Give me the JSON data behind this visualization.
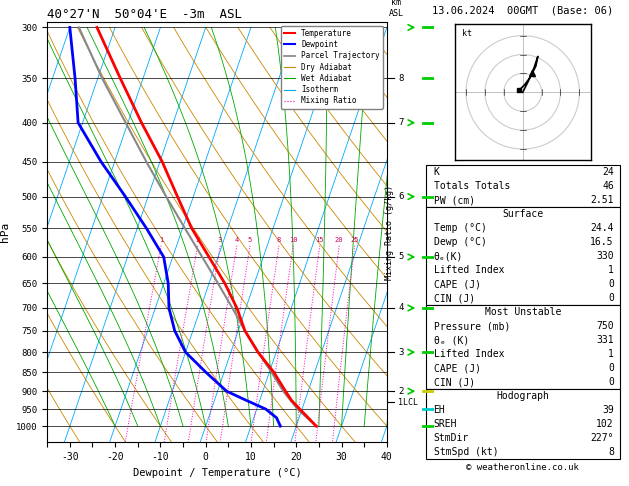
{
  "title_left": "40°27'N  50°04'E  -3m  ASL",
  "title_right": "13.06.2024  00GMT  (Base: 06)",
  "xlabel": "Dewpoint / Temperature (°C)",
  "ylabel_left": "hPa",
  "ylabel_right": "km\nASL",
  "pressure_levels": [
    300,
    350,
    400,
    450,
    500,
    550,
    600,
    650,
    700,
    750,
    800,
    850,
    900,
    950,
    1000
  ],
  "skew_factor": 30,
  "temp_color": "#ff0000",
  "dewp_color": "#0000ff",
  "parcel_color": "#888888",
  "isotherm_color": "#00aaff",
  "dry_adiabat_color": "#cc8800",
  "wet_adiabat_color": "#00aa00",
  "mixing_ratio_color": "#ff00bb",
  "grid_color": "#000000",
  "legend_items": [
    "Temperature",
    "Dewpoint",
    "Parcel Trajectory",
    "Dry Adiabat",
    "Wet Adiabat",
    "Isotherm",
    "Mixing Ratio"
  ],
  "mixing_ratios": [
    1,
    2,
    3,
    4,
    5,
    8,
    10,
    15,
    20,
    25
  ],
  "mixing_ratio_labels": [
    "1",
    "2",
    "3",
    "4",
    "5",
    "8",
    "10",
    "15",
    "20",
    "25"
  ],
  "km_tick_pressures": [
    350,
    400,
    500,
    600,
    700,
    800,
    900
  ],
  "km_tick_labels": [
    "8",
    "7",
    "6",
    "5",
    "4",
    "3",
    "2"
  ],
  "lcl_pressure": 930,
  "right_panel": {
    "K": 24,
    "Totals_Totals": 46,
    "PW_cm": "2.51",
    "Surface_Temp": "24.4",
    "Surface_Dewp": "16.5",
    "Surface_theta_e": "330",
    "Surface_Lifted_Index": "1",
    "Surface_CAPE": "0",
    "Surface_CIN": "0",
    "MU_Pressure": "750",
    "MU_theta_e": "331",
    "MU_Lifted_Index": "1",
    "MU_CAPE": "0",
    "MU_CIN": "0",
    "Hodograph_EH": "39",
    "Hodograph_SREH": "102",
    "Hodograph_StmDir": "227°",
    "Hodograph_StmSpd": "8"
  },
  "temp_profile": {
    "pressure": [
      1000,
      975,
      950,
      925,
      900,
      850,
      800,
      750,
      700,
      650,
      600,
      550,
      500,
      450,
      400,
      350,
      300
    ],
    "temp": [
      24.4,
      22.0,
      19.5,
      17.0,
      15.0,
      11.0,
      6.0,
      1.5,
      -2.0,
      -6.5,
      -12.0,
      -18.0,
      -23.5,
      -29.5,
      -37.0,
      -45.0,
      -54.0
    ]
  },
  "dewp_profile": {
    "pressure": [
      1000,
      975,
      950,
      925,
      900,
      850,
      800,
      750,
      700,
      650,
      600,
      550,
      500,
      450,
      400,
      350,
      300
    ],
    "temp": [
      16.5,
      15.0,
      12.0,
      7.0,
      2.0,
      -4.0,
      -10.0,
      -14.0,
      -17.0,
      -19.0,
      -22.0,
      -28.0,
      -35.0,
      -43.0,
      -51.0,
      -55.0,
      -60.0
    ]
  },
  "parcel_profile": {
    "pressure": [
      1000,
      950,
      900,
      850,
      800,
      750,
      700,
      650,
      600,
      550,
      500,
      450,
      400,
      350,
      300
    ],
    "temp": [
      24.4,
      19.0,
      14.5,
      10.5,
      6.0,
      1.5,
      -3.0,
      -8.0,
      -13.5,
      -19.5,
      -26.0,
      -33.0,
      -40.5,
      -49.0,
      -58.0
    ]
  },
  "wind_symbols": {
    "pressures": [
      1000,
      950,
      900,
      850,
      800,
      750,
      700,
      650,
      600,
      550,
      500,
      450,
      400,
      350,
      300
    ],
    "colors": [
      "#00cc00",
      "#00cc00",
      "#00cc00",
      "#00cc00",
      "#00cc00",
      "#00cc00",
      "#00cc00",
      "#00cc00",
      "#00cc00",
      "#00cc00",
      "#00cc00",
      "#00cc00",
      "#00cc00",
      "#00cc00",
      "#00cc00"
    ]
  },
  "font_family": "monospace"
}
